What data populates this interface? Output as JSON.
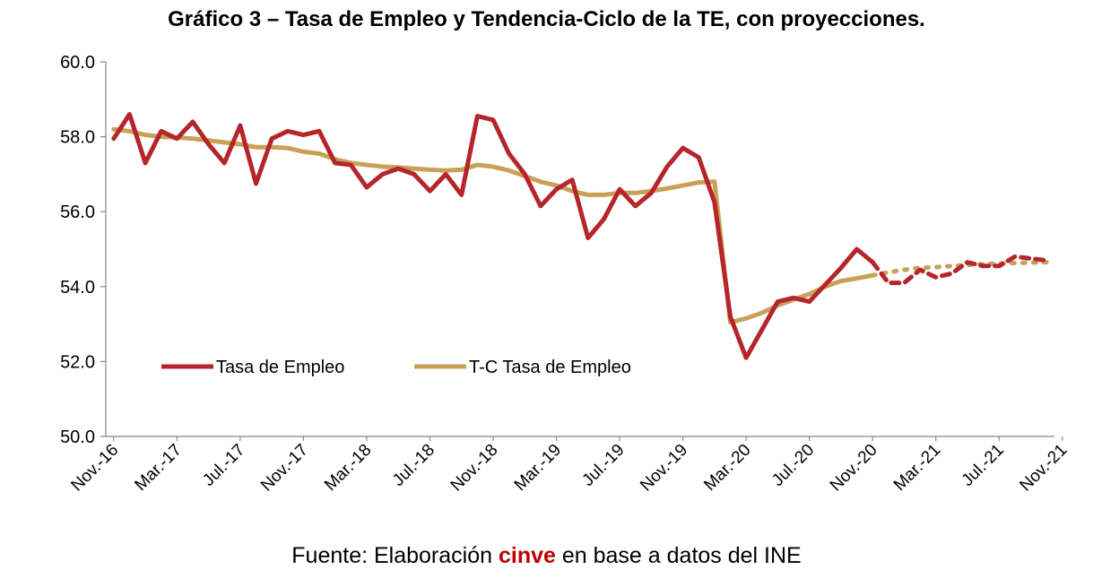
{
  "title": "Gráfico 3 – Tasa de Empleo y Tendencia-Ciclo de la TE, con proyecciones.",
  "source": {
    "prefix": "Fuente: Elaboración",
    "brand": "cinve",
    "suffix": "en base a datos del INE"
  },
  "colors": {
    "te": "#b5252a",
    "tc": "#c9a058",
    "axis": "#888888"
  },
  "chart_data": {
    "type": "line",
    "title": "Gráfico 3 – Tasa de Empleo y Tendencia-Ciclo de la TE, con proyecciones.",
    "xlabel": "",
    "ylabel": "",
    "ylim": [
      50,
      60
    ],
    "yticks": [
      "50.0",
      "52.0",
      "54.0",
      "56.0",
      "58.0",
      "60.0"
    ],
    "xtick_labels": [
      "Nov.-16",
      "Mar.-17",
      "Jul.-17",
      "Nov.-17",
      "Mar.-18",
      "Jul.-18",
      "Nov.-18",
      "Mar.-19",
      "Jul.-19",
      "Nov.-19",
      "Mar.-20",
      "Jul.-20",
      "Nov.-20",
      "Mar.-21",
      "Jul.-21",
      "Nov.-21"
    ],
    "legend_position": "inside-lower-left",
    "grid": false,
    "x_start": "Nov.-16",
    "x_frequency": "monthly",
    "projection_from": "Nov.-20",
    "series": [
      {
        "name": "Tasa de Empleo",
        "values": [
          57.95,
          58.6,
          57.3,
          58.15,
          57.95,
          58.4,
          57.8,
          57.3,
          58.3,
          56.75,
          57.95,
          58.15,
          58.05,
          58.15,
          57.3,
          57.25,
          56.65,
          57.0,
          57.15,
          57.0,
          56.55,
          57.0,
          56.45,
          58.55,
          58.45,
          57.55,
          57.0,
          56.15,
          56.6,
          56.85,
          55.3,
          55.8,
          56.6,
          56.15,
          56.5,
          57.2,
          57.7,
          57.45,
          56.25,
          53.2,
          52.1,
          52.85,
          53.6,
          53.7,
          53.6,
          54.05,
          54.5,
          55.0,
          54.65,
          54.1,
          54.1,
          54.45,
          54.25,
          54.35,
          54.65,
          54.55,
          54.55,
          54.8,
          54.75,
          54.7
        ]
      },
      {
        "name": "T-C Tasa de Empleo",
        "values": [
          58.2,
          58.15,
          58.05,
          58.0,
          57.98,
          57.95,
          57.9,
          57.85,
          57.8,
          57.72,
          57.72,
          57.7,
          57.6,
          57.55,
          57.4,
          57.3,
          57.25,
          57.2,
          57.18,
          57.15,
          57.12,
          57.1,
          57.12,
          57.25,
          57.2,
          57.1,
          56.95,
          56.8,
          56.7,
          56.55,
          56.45,
          56.45,
          56.5,
          56.5,
          56.55,
          56.62,
          56.7,
          56.78,
          56.8,
          53.05,
          53.15,
          53.3,
          53.5,
          53.65,
          53.8,
          54.0,
          54.15,
          54.22,
          54.3,
          54.38,
          54.45,
          54.5,
          54.52,
          54.55,
          54.58,
          54.6,
          54.62,
          54.63,
          54.64,
          54.65
        ]
      }
    ]
  }
}
